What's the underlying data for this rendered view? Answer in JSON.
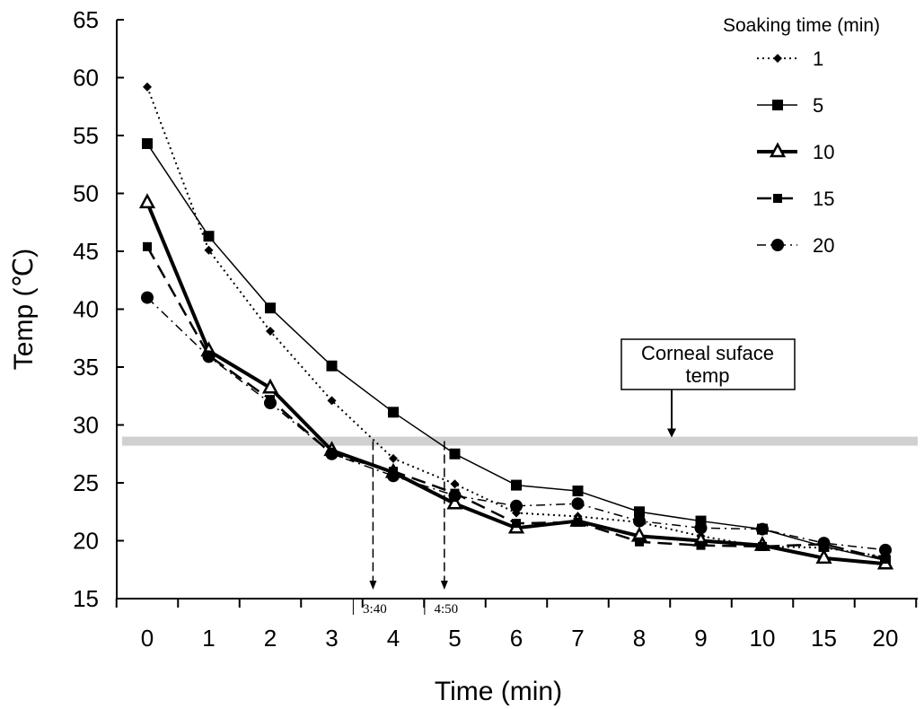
{
  "chart_data": {
    "type": "line",
    "xlabel": "Time (min)",
    "ylabel": "Temp (℃)",
    "ylim": [
      15,
      65
    ],
    "y_ticks": [
      "15",
      "20",
      "25",
      "30",
      "35",
      "40",
      "45",
      "50",
      "55",
      "60",
      "65"
    ],
    "categories": [
      "0",
      "1",
      "2",
      "3",
      "4",
      "5",
      "6",
      "7",
      "8",
      "9",
      "10",
      "15",
      "20"
    ],
    "legend": {
      "title": "Soaking time (min)",
      "placement": "top-right"
    },
    "grid": false,
    "series": [
      {
        "name": "1",
        "style": "dotted",
        "marker": "diamond",
        "values": [
          59.2,
          45.1,
          38.1,
          32.1,
          27.1,
          24.9,
          22.4,
          22.1,
          21.6,
          20.4,
          19.5,
          19.4,
          18.6
        ]
      },
      {
        "name": "5",
        "style": "solid",
        "marker": "square",
        "values": [
          54.3,
          46.3,
          40.1,
          35.1,
          31.1,
          27.5,
          24.8,
          24.3,
          22.5,
          21.7,
          21.0,
          19.5,
          18.3
        ]
      },
      {
        "name": "10",
        "style": "solid-thick",
        "marker": "triangle",
        "values": [
          49.2,
          36.4,
          33.2,
          27.8,
          25.9,
          23.2,
          21.1,
          21.7,
          20.4,
          20.0,
          19.6,
          18.5,
          18.0
        ]
      },
      {
        "name": "15",
        "style": "dashed",
        "marker": "square-small",
        "values": [
          45.4,
          36.0,
          32.2,
          27.5,
          26.0,
          24.1,
          21.5,
          21.6,
          19.9,
          19.6,
          19.5,
          19.7,
          18.4
        ]
      },
      {
        "name": "20",
        "style": "dash-dot",
        "marker": "circle",
        "values": [
          41.0,
          35.9,
          31.9,
          27.5,
          25.6,
          23.9,
          23.0,
          23.2,
          21.7,
          21.1,
          21.0,
          19.8,
          19.2
        ]
      }
    ],
    "reference_band": {
      "label": "Corneal suface temp",
      "value": 28.6
    },
    "annotations": [
      {
        "label": "3:40",
        "x": 3.67,
        "from_value": 28.6
      },
      {
        "label": "4:50",
        "x": 4.83,
        "from_value": 28.6
      }
    ],
    "colors": {
      "line": "#000000",
      "band": "#d0d0d0"
    }
  }
}
